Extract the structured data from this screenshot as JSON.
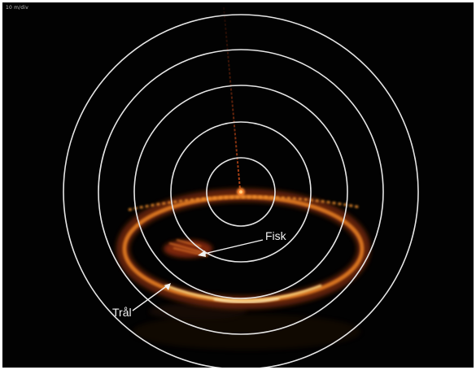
{
  "sonar": {
    "range_label": "10 m/div",
    "ring_count": 5
  },
  "annotations": {
    "fish_label": "Fisk",
    "trawl_label": "Trål"
  },
  "colors": {
    "background": "#020202",
    "ring": "#e6e6e6",
    "echo_hot": "#ffd27a",
    "echo_mid": "#e07a22",
    "echo_dim": "#7a2a0c"
  }
}
